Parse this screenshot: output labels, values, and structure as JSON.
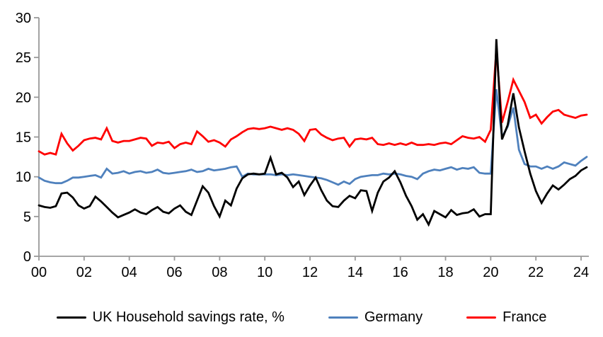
{
  "chart_data": {
    "type": "line",
    "title": "",
    "frequency": "quarterly",
    "x_start": "2000Q1",
    "x_end": "2024Q2",
    "grid": false,
    "legend_position": "bottom",
    "x_axis": {
      "tick_labels": [
        "00",
        "02",
        "04",
        "06",
        "08",
        "10",
        "12",
        "14",
        "16",
        "18",
        "20",
        "22",
        "24"
      ],
      "tick_index_step": 8
    },
    "y_axis": {
      "ticks": [
        0,
        5,
        10,
        15,
        20,
        25,
        30
      ],
      "min": 0,
      "max": 30
    },
    "series": [
      {
        "name": "UK Household savings rate, %",
        "color": "#000000",
        "key": "uk",
        "values": [
          6.4,
          6.2,
          6.1,
          6.3,
          7.9,
          8.0,
          7.4,
          6.4,
          6.0,
          6.3,
          7.5,
          6.9,
          6.2,
          5.5,
          4.9,
          5.2,
          5.5,
          5.9,
          5.5,
          5.3,
          5.8,
          6.2,
          5.6,
          5.4,
          6.0,
          6.4,
          5.6,
          5.2,
          7.0,
          8.8,
          8.0,
          6.3,
          5.0,
          7.0,
          6.4,
          8.5,
          9.8,
          10.3,
          10.4,
          10.3,
          10.4,
          12.4,
          10.3,
          10.5,
          9.9,
          8.7,
          9.4,
          7.7,
          8.9,
          9.9,
          8.3,
          7.0,
          6.3,
          6.2,
          7.0,
          7.6,
          7.3,
          8.3,
          8.2,
          5.7,
          8.0,
          9.4,
          9.9,
          10.7,
          9.3,
          7.6,
          6.3,
          4.6,
          5.3,
          4.0,
          5.7,
          5.3,
          4.9,
          5.8,
          5.2,
          5.4,
          5.5,
          5.9,
          5.0,
          5.3,
          5.3,
          27.3,
          14.7,
          16.5,
          20.5,
          16.2,
          13.2,
          10.4,
          8.2,
          6.7,
          7.9,
          8.9,
          8.4,
          9.0,
          9.7,
          10.1,
          10.8,
          11.2
        ]
      },
      {
        "name": "Germany",
        "color": "#4F81BD",
        "key": "germany",
        "values": [
          9.9,
          9.5,
          9.3,
          9.2,
          9.2,
          9.5,
          9.9,
          9.9,
          10.0,
          10.1,
          10.2,
          9.9,
          11.0,
          10.4,
          10.5,
          10.7,
          10.4,
          10.6,
          10.7,
          10.5,
          10.6,
          10.9,
          10.5,
          10.4,
          10.5,
          10.6,
          10.7,
          10.9,
          10.6,
          10.7,
          11.0,
          10.8,
          10.9,
          11.0,
          11.2,
          11.3,
          10.0,
          10.4,
          10.3,
          10.3,
          10.3,
          10.3,
          10.2,
          10.3,
          10.2,
          10.3,
          10.2,
          10.1,
          10.0,
          9.9,
          9.8,
          9.6,
          9.3,
          9.0,
          9.4,
          9.1,
          9.7,
          10.0,
          10.1,
          10.2,
          10.2,
          10.4,
          10.3,
          10.4,
          10.3,
          10.1,
          10.0,
          9.7,
          10.4,
          10.7,
          10.9,
          10.8,
          11.0,
          11.2,
          10.9,
          11.1,
          11.0,
          11.2,
          10.5,
          10.4,
          10.4,
          21.0,
          15.0,
          16.3,
          18.7,
          13.4,
          11.6,
          11.3,
          11.3,
          11.0,
          11.3,
          11.0,
          11.3,
          11.8,
          11.6,
          11.4,
          12.0,
          12.5
        ]
      },
      {
        "name": "France",
        "color": "#FF0000",
        "key": "france",
        "values": [
          13.2,
          12.8,
          13.0,
          12.8,
          15.4,
          14.2,
          13.3,
          13.9,
          14.6,
          14.8,
          14.9,
          14.7,
          16.1,
          14.5,
          14.3,
          14.5,
          14.5,
          14.7,
          14.9,
          14.8,
          13.9,
          14.3,
          14.2,
          14.4,
          13.6,
          14.1,
          14.3,
          14.1,
          15.7,
          15.1,
          14.4,
          14.6,
          14.3,
          13.8,
          14.7,
          15.1,
          15.6,
          16.0,
          16.1,
          16.0,
          16.1,
          16.3,
          16.1,
          15.9,
          16.1,
          15.9,
          15.4,
          14.5,
          15.9,
          16.0,
          15.3,
          14.9,
          14.6,
          14.8,
          14.9,
          13.8,
          14.7,
          14.8,
          14.7,
          14.9,
          14.1,
          14.0,
          14.2,
          14.0,
          14.2,
          14.0,
          14.3,
          14.0,
          14.0,
          14.1,
          14.0,
          14.2,
          14.3,
          14.1,
          14.6,
          15.1,
          14.9,
          14.8,
          15.0,
          14.4,
          15.9,
          26.0,
          16.8,
          19.4,
          22.2,
          20.8,
          19.4,
          17.4,
          17.8,
          16.7,
          17.5,
          18.2,
          18.4,
          17.8,
          17.6,
          17.4,
          17.7,
          17.8
        ]
      }
    ]
  },
  "legend": {
    "items": [
      {
        "label": "UK Household savings rate, %"
      },
      {
        "label": "Germany"
      },
      {
        "label": "France"
      }
    ]
  },
  "colors": {
    "axis": "#999999",
    "tick_text": "#000000",
    "background": "#FFFFFF"
  }
}
